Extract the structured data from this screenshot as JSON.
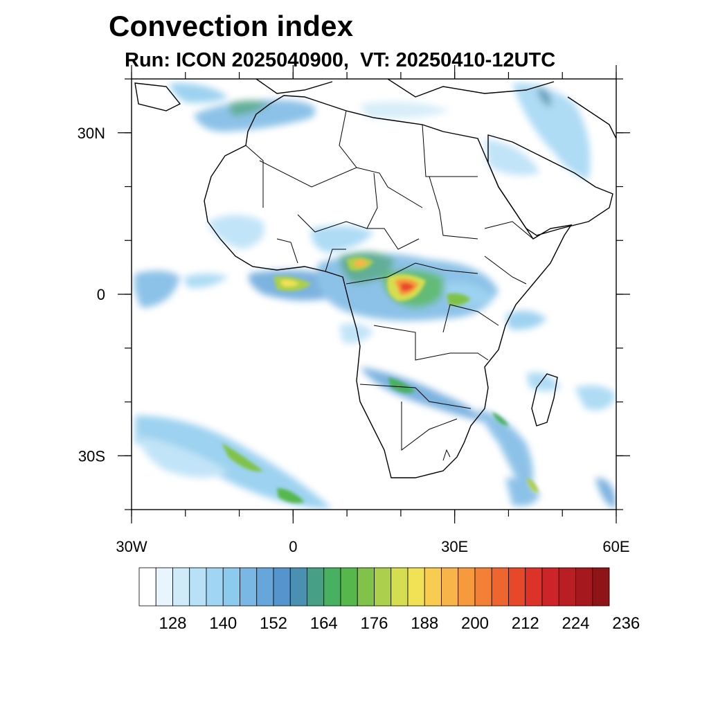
{
  "title": "Convection index",
  "subtitle": "Run: ICON 2025040900,  VT: 20250410-12UTC",
  "map": {
    "lon_ticks": [
      {
        "value": -30,
        "label": "30W"
      },
      {
        "value": 0,
        "label": "0"
      },
      {
        "value": 30,
        "label": "30E"
      },
      {
        "value": 60,
        "label": "60E"
      }
    ],
    "lat_ticks": [
      {
        "value": 30,
        "label": "30N"
      },
      {
        "value": 0,
        "label": "0"
      },
      {
        "value": -30,
        "label": "30S"
      }
    ],
    "extent": {
      "lon": [
        -30,
        60
      ],
      "lat": [
        -40,
        40
      ]
    }
  },
  "colorbar": {
    "colors": [
      "#ffffff",
      "#e9f5fc",
      "#d0ebf8",
      "#b8e0f7",
      "#a0d6f3",
      "#8ccbee",
      "#79b8e4",
      "#66a6da",
      "#5594cc",
      "#4a90b0",
      "#47a086",
      "#48b060",
      "#56b84c",
      "#80c24a",
      "#acd04c",
      "#d5de50",
      "#f0e254",
      "#f8cc50",
      "#f8b448",
      "#f79a3e",
      "#f38036",
      "#ef6530",
      "#e8482a",
      "#dd3228",
      "#cc2428",
      "#b81e24",
      "#a4181e",
      "#8e1418"
    ],
    "tick_labels": [
      "128",
      "140",
      "152",
      "164",
      "176",
      "188",
      "200",
      "212",
      "224",
      "236"
    ]
  }
}
